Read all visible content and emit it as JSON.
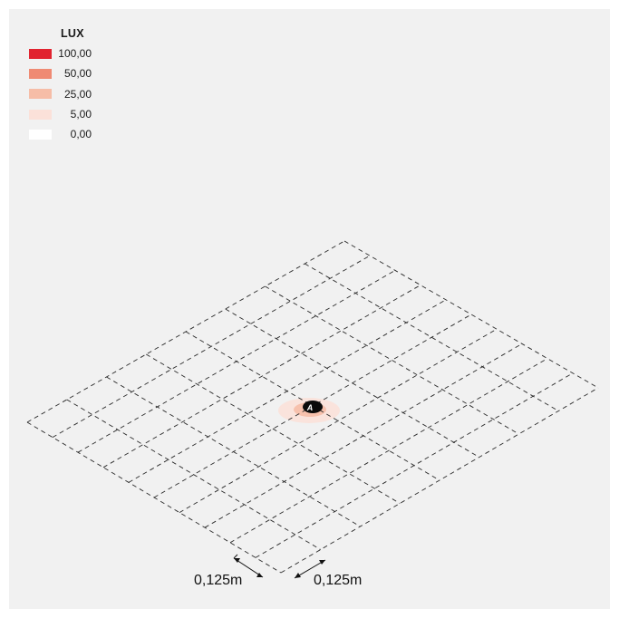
{
  "legend": {
    "title": "LUX",
    "items": [
      {
        "label": "100,00",
        "color": "#e1232f"
      },
      {
        "label": "50,00",
        "color": "#ef8a73"
      },
      {
        "label": "25,00",
        "color": "#f6bda7"
      },
      {
        "label": "5,00",
        "color": "#fbe1d9"
      },
      {
        "label": "0,00",
        "color": "#ffffff"
      }
    ]
  },
  "plan": {
    "grid_rows": 10,
    "grid_cols": 8,
    "fixture_label": "A",
    "dimension_left": "0,125m",
    "dimension_right": "0,125m"
  }
}
